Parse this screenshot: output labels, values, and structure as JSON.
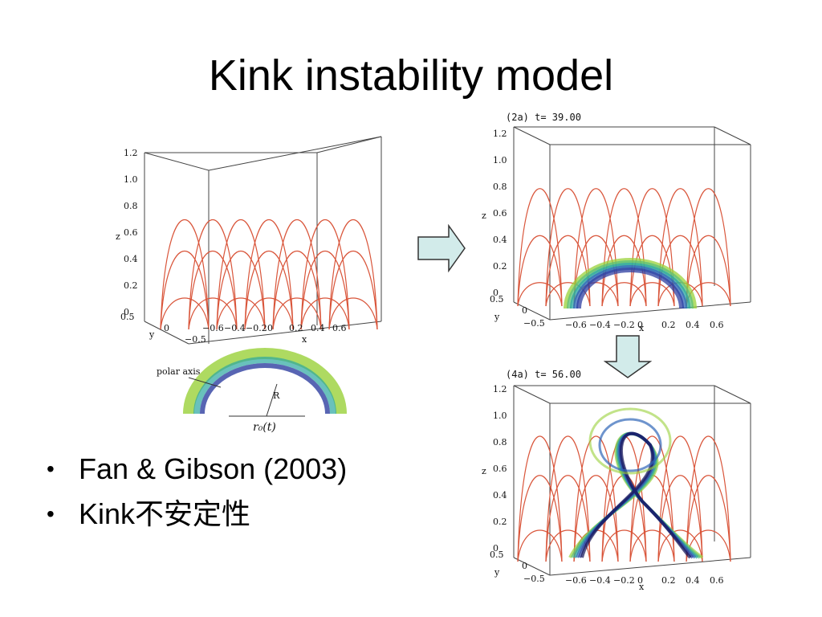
{
  "slide": {
    "title": "Kink instability model",
    "bullets": [
      "Fan & Gibson (2003)",
      "Kink不安定性"
    ]
  },
  "colors": {
    "field_lines": "#d9553a",
    "rope_blue": "#2e3ea0",
    "rope_green": "#9ad13a",
    "arrow_fill": "#d2ebea",
    "arrow_stroke": "#333333"
  },
  "panels": {
    "left": {
      "z_ticks": [
        "1.2",
        "1.0",
        "0.8",
        "0.6",
        "0.4",
        "0.2",
        "0"
      ],
      "z_label": "z",
      "y_label": "y",
      "y_ticks": [
        "0.5",
        "0",
        "−0.5"
      ],
      "x_label": "x",
      "x_ticks": [
        "−0.6",
        "−0.4",
        "−0.2",
        "0",
        "0.2",
        "0.4",
        "0.6"
      ],
      "inset_polar": "polar axis",
      "inset_R": "R",
      "inset_r0": "r₀(t)"
    },
    "right_top": {
      "label": "(2a) t= 39.00",
      "z_ticks": [
        "1.2",
        "1.0",
        "0.8",
        "0.6",
        "0.4",
        "0.2",
        "0"
      ],
      "z_label": "z",
      "y_label": "y",
      "y_ticks": [
        "0.5",
        "0",
        "−0.5"
      ],
      "x_label": "x",
      "x_ticks": [
        "−0.6",
        "−0.4",
        "−0.2",
        "0",
        "0.2",
        "0.4",
        "0.6"
      ]
    },
    "right_bottom": {
      "label": "(4a) t= 56.00",
      "z_ticks": [
        "1.2",
        "1.0",
        "0.8",
        "0.6",
        "0.4",
        "0.2",
        "0"
      ],
      "z_label": "z",
      "y_label": "y",
      "y_ticks": [
        "0.5",
        "0",
        "−0.5"
      ],
      "x_label": "x",
      "x_ticks": [
        "−0.6",
        "−0.4",
        "−0.2",
        "0",
        "0.2",
        "0.4",
        "0.6"
      ]
    }
  }
}
